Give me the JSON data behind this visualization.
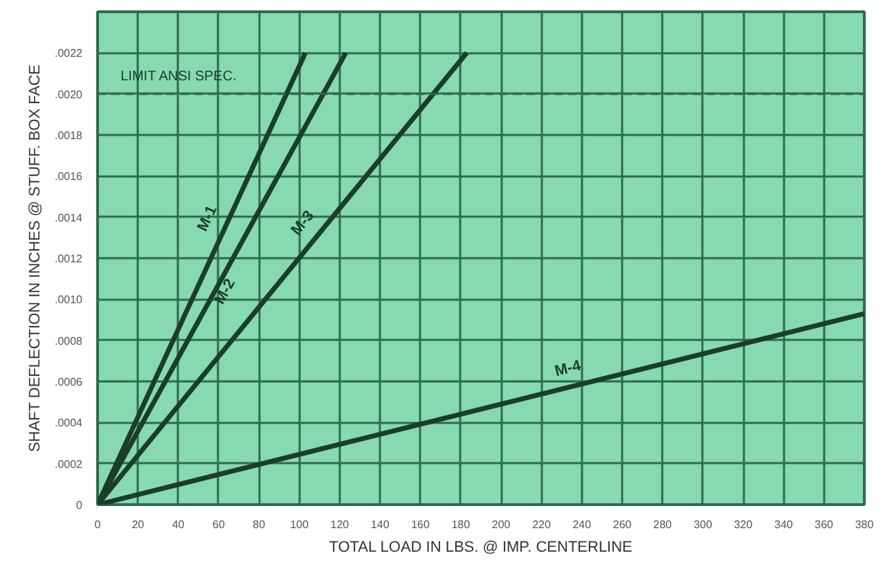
{
  "chart_data": {
    "type": "line",
    "xlabel": "TOTAL LOAD IN LBS. @ IMP. CENTERLINE",
    "ylabel": "SHAFT DEFLECTION IN INCHES @ STUFF. BOX FACE",
    "xlim": [
      0,
      380
    ],
    "ylim": [
      0,
      0.0024
    ],
    "xticks": [
      0,
      20,
      40,
      60,
      80,
      100,
      120,
      140,
      160,
      180,
      200,
      220,
      240,
      260,
      280,
      300,
      320,
      340,
      360,
      380
    ],
    "yticks": [
      0,
      {
        "value": 0.0002,
        "label": ".0002"
      },
      {
        "value": 0.0004,
        "label": ".0004"
      },
      {
        "value": 0.0006,
        "label": ".0006"
      },
      {
        "value": 0.0008,
        "label": ".0008"
      },
      {
        "value": 0.001,
        "label": ".0010"
      },
      {
        "value": 0.0012,
        "label": ".0012"
      },
      {
        "value": 0.0014,
        "label": ".0014"
      },
      {
        "value": 0.0016,
        "label": ".0016"
      },
      {
        "value": 0.0018,
        "label": ".0018"
      },
      {
        "value": 0.002,
        "label": ".0020"
      },
      {
        "value": 0.0022,
        "label": ".0022"
      }
    ],
    "grid": true,
    "line_style": "solid",
    "series": [
      {
        "name": "M-1",
        "color": "#1b3d2c",
        "x": [
          0,
          103
        ],
        "values": [
          0,
          0.0022
        ]
      },
      {
        "name": "M-2",
        "color": "#1b3d2c",
        "x": [
          0,
          123
        ],
        "values": [
          0,
          0.0022
        ]
      },
      {
        "name": "M-3",
        "color": "#1b3d2c",
        "x": [
          0,
          183
        ],
        "values": [
          0,
          0.0022
        ]
      },
      {
        "name": "M-4",
        "color": "#1b3d2c",
        "x": [
          0,
          380
        ],
        "values": [
          0,
          0.00093
        ]
      }
    ],
    "ref_lines": [
      {
        "axis": "y",
        "value": 0.002,
        "label": "LIMIT ANSI SPEC.",
        "color": "#2e6b4a",
        "line_style": "dashed"
      }
    ]
  }
}
